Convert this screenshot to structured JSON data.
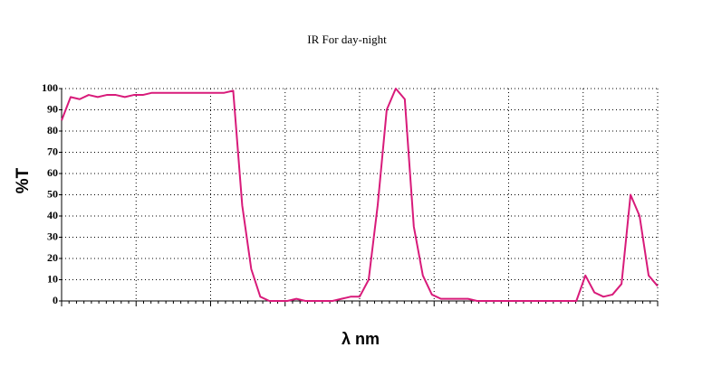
{
  "chart_data": {
    "type": "line",
    "title": "IR For day-night",
    "y_label": "%T",
    "x_label": "λ nm",
    "ylim": [
      0,
      100
    ],
    "yticks": [
      0,
      10,
      20,
      30,
      40,
      50,
      60,
      70,
      80,
      90,
      100
    ],
    "grid": true,
    "categories": [
      null,
      null,
      null,
      null,
      null,
      null,
      null,
      null,
      null,
      null,
      null,
      null,
      null,
      null,
      null,
      null,
      null,
      null,
      null,
      null,
      null,
      null,
      null,
      null,
      null,
      null,
      null,
      null,
      null,
      null,
      null,
      null,
      null,
      null,
      null,
      null,
      null,
      null,
      null,
      null,
      null,
      null,
      null,
      null,
      null,
      null,
      null,
      null,
      null,
      null,
      null,
      null,
      null,
      null,
      null,
      null,
      null,
      null,
      null,
      null,
      null,
      null,
      null,
      null,
      null,
      null,
      null
    ],
    "series": [
      {
        "color": "#d81b7a",
        "values": [
          85,
          96,
          95,
          97,
          96,
          97,
          97,
          96,
          97,
          97,
          98,
          98,
          98,
          98,
          98,
          98,
          98,
          98,
          98,
          99,
          45,
          15,
          2,
          0,
          0,
          0,
          1,
          0,
          0,
          0,
          0,
          1,
          2,
          2,
          10,
          45,
          90,
          100,
          95,
          35,
          12,
          3,
          1,
          1,
          1,
          1,
          0,
          0,
          0,
          0,
          0,
          0,
          0,
          0,
          0,
          0,
          0,
          0,
          12,
          4,
          2,
          3,
          8,
          50,
          40,
          12,
          7
        ]
      }
    ]
  }
}
